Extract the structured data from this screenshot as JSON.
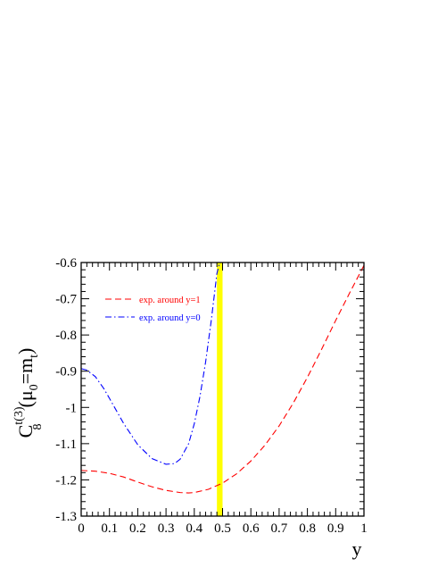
{
  "chart_data": {
    "type": "line",
    "xlabel": "y",
    "ylabel": {
      "base": "C",
      "subscript": "8",
      "superscript": "t(3)",
      "paren_open": "(",
      "mu": "μ",
      "mu_subscript": "0",
      "equals_m": "=m",
      "m_subscript": "t",
      "paren_close": ")"
    },
    "xlim": [
      0,
      1
    ],
    "ylim": [
      -1.3,
      -0.6
    ],
    "x_ticks": [
      "0",
      "0.1",
      "0.2",
      "0.3",
      "0.4",
      "0.5",
      "0.6",
      "0.7",
      "0.8",
      "0.9",
      "1"
    ],
    "y_ticks": [
      "-0.6",
      "-0.7",
      "-0.8",
      "-0.9",
      "-1",
      "-1.1",
      "-1.2",
      "-1.3"
    ],
    "grid": false,
    "legend_position": "top-left",
    "highlight_band": {
      "x_from": 0.48,
      "x_to": 0.5,
      "color": "#ffff00"
    },
    "series": [
      {
        "name": "exp. around y=1",
        "style": "dashed",
        "color": "#ff0000",
        "x": [
          0,
          0.05,
          0.1,
          0.15,
          0.2,
          0.25,
          0.3,
          0.35,
          0.38,
          0.4,
          0.45,
          0.5,
          0.55,
          0.6,
          0.65,
          0.7,
          0.75,
          0.8,
          0.85,
          0.9,
          0.95,
          1.0
        ],
        "y": [
          -1.174,
          -1.176,
          -1.182,
          -1.192,
          -1.206,
          -1.219,
          -1.229,
          -1.235,
          -1.236,
          -1.235,
          -1.226,
          -1.209,
          -1.183,
          -1.148,
          -1.104,
          -1.051,
          -0.988,
          -0.917,
          -0.84,
          -0.76,
          -0.683,
          -0.608
        ]
      },
      {
        "name": "exp. around y=0",
        "style": "dash-dot",
        "color": "#0000ff",
        "x": [
          0,
          0.02,
          0.05,
          0.08,
          0.1,
          0.15,
          0.2,
          0.25,
          0.3,
          0.33,
          0.35,
          0.38,
          0.4,
          0.42,
          0.44,
          0.46,
          0.48,
          0.49
        ],
        "y": [
          -0.893,
          -0.897,
          -0.915,
          -0.948,
          -0.975,
          -1.044,
          -1.103,
          -1.141,
          -1.157,
          -1.155,
          -1.143,
          -1.1,
          -1.045,
          -0.97,
          -0.875,
          -0.76,
          -0.63,
          -0.6
        ]
      }
    ]
  }
}
